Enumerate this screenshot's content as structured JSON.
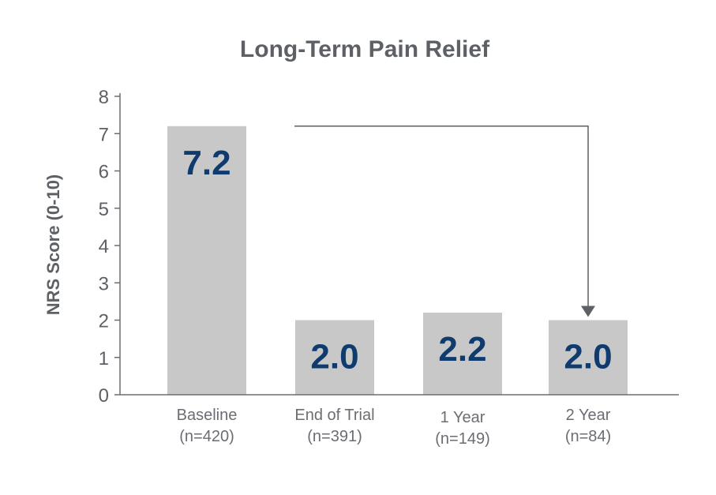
{
  "chart_data": {
    "type": "bar",
    "title": "Long-Term Pain Relief",
    "ylabel": "NRS Score (0-10)",
    "xlabel": "",
    "ylim": [
      0,
      8
    ],
    "yticks": [
      "0",
      "1",
      "2",
      "3",
      "4",
      "5",
      "6",
      "7",
      "8"
    ],
    "categories": [
      {
        "name": "Baseline",
        "n": "(n=420)"
      },
      {
        "name": "End of Trial",
        "n": "(n=391)"
      },
      {
        "name": "1 Year",
        "n": "(n=149)"
      },
      {
        "name": "2 Year",
        "n": "(n=84)"
      }
    ],
    "values": [
      7.2,
      2.0,
      2.2,
      2.0
    ],
    "data_labels": [
      "7.2",
      "2.0",
      "2.2",
      "2.0"
    ],
    "annotation": {
      "type": "arrow",
      "from_category": 0,
      "to_category": 3,
      "at_value": 7.2
    },
    "colors": {
      "bar": "#c8c8c8",
      "data_label": "#0f3b6e",
      "text": "#5d6166",
      "axis": "#6a6e73",
      "arrow": "#5d6166"
    }
  }
}
